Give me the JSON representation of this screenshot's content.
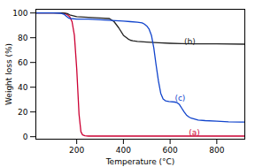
{
  "chart_data": {
    "type": "line",
    "xlabel": "Temperature (°C)",
    "ylabel": "Weight loss (%)",
    "xlim": [
      25,
      920
    ],
    "ylim": [
      -2,
      103
    ],
    "xticks": [
      200,
      400,
      600,
      800
    ],
    "yticks": [
      0,
      20,
      40,
      60,
      80,
      100
    ],
    "grid": false,
    "series": [
      {
        "name": "(a)",
        "color": "#cc0033",
        "x": [
          25,
          130,
          150,
          160,
          170,
          180,
          190,
          200,
          210,
          218,
          225,
          235,
          250,
          920
        ],
        "values": [
          100,
          100,
          99.5,
          98.5,
          97,
          93,
          82,
          55,
          18,
          4,
          1.5,
          0.8,
          0.5,
          0.5
        ]
      },
      {
        "name": "(b)",
        "color": "#222222",
        "x": [
          25,
          130,
          150,
          160,
          170,
          200,
          250,
          300,
          340,
          360,
          380,
          400,
          420,
          430,
          440,
          460,
          500,
          550,
          600,
          650,
          700,
          800,
          920
        ],
        "values": [
          100,
          100,
          99.8,
          99.5,
          98.5,
          97,
          96.5,
          96,
          95.5,
          93,
          88,
          82,
          79,
          78,
          77.5,
          77,
          76.5,
          76,
          75.5,
          75.2,
          75,
          75,
          74.8
        ]
      },
      {
        "name": "(c)",
        "color": "#1144cc",
        "x": [
          25,
          100,
          130,
          145,
          155,
          165,
          175,
          200,
          250,
          300,
          350,
          400,
          430,
          460,
          480,
          490,
          500,
          510,
          520,
          530,
          540,
          550,
          560,
          570,
          580,
          595,
          620,
          630,
          640,
          650,
          660,
          670,
          680,
          690,
          700,
          720,
          750,
          800,
          850,
          900,
          920
        ],
        "values": [
          100,
          100,
          99.8,
          99,
          97.5,
          96,
          95.5,
          95,
          95,
          94.5,
          94,
          93.5,
          93,
          92.5,
          92,
          91,
          89.5,
          87,
          82,
          72,
          58,
          45,
          35,
          30.5,
          29,
          28.5,
          28,
          27.5,
          26,
          23,
          20,
          17.5,
          16,
          15,
          14.5,
          13.5,
          13,
          12.5,
          12,
          11.8,
          11.8
        ]
      }
    ],
    "annotations": [
      {
        "text": "(a)",
        "x": 680,
        "y": 3
      },
      {
        "text": "(b)",
        "x": 660,
        "y": 77
      },
      {
        "text": "(c)",
        "x": 620,
        "y": 31
      }
    ]
  }
}
